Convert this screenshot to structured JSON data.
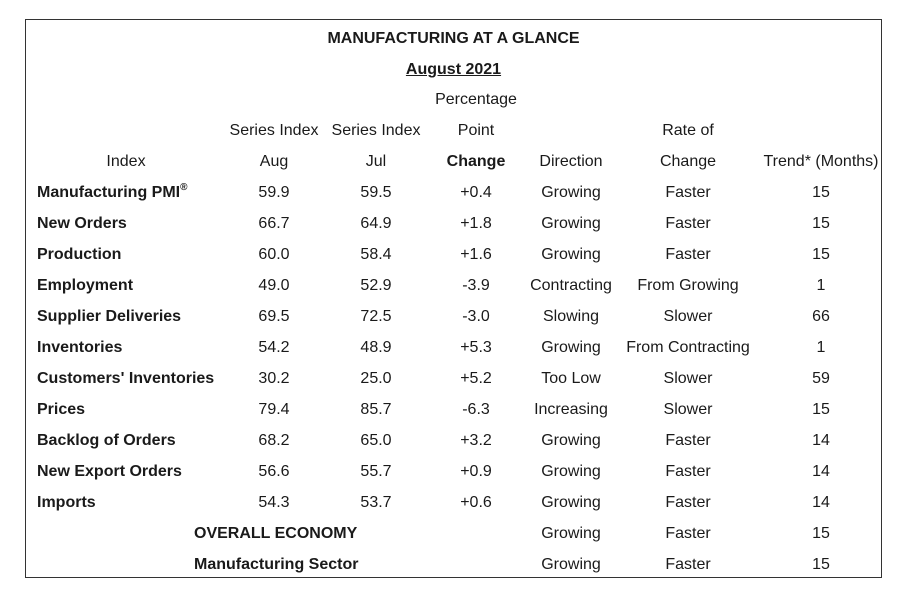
{
  "title": "MANUFACTURING AT A GLANCE",
  "subtitle": "August 2021",
  "header": {
    "row1": {
      "percentage": "Percentage"
    },
    "row2": {
      "series_aug": "Series Index",
      "series_jul": "Series Index",
      "point": "Point",
      "rate": "Rate of"
    },
    "row3": {
      "index": "Index",
      "aug": "Aug",
      "jul": "Jul",
      "change": "Change",
      "direction": "Direction",
      "rate_change": "Change",
      "trend": "Trend* (Months)"
    }
  },
  "rows": [
    {
      "index": "Manufacturing PMI",
      "sup": "®",
      "aug": "59.9",
      "jul": "59.5",
      "change": "+0.4",
      "direction": "Growing",
      "rate": "Faster",
      "trend": "15"
    },
    {
      "index": "New Orders",
      "aug": "66.7",
      "jul": "64.9",
      "change": "+1.8",
      "direction": "Growing",
      "rate": "Faster",
      "trend": "15"
    },
    {
      "index": "Production",
      "aug": "60.0",
      "jul": "58.4",
      "change": "+1.6",
      "direction": "Growing",
      "rate": "Faster",
      "trend": "15"
    },
    {
      "index": "Employment",
      "aug": "49.0",
      "jul": "52.9",
      "change": "-3.9",
      "direction": "Contracting",
      "rate": "From Growing",
      "trend": "1"
    },
    {
      "index": "Supplier Deliveries",
      "aug": "69.5",
      "jul": "72.5",
      "change": "-3.0",
      "direction": "Slowing",
      "rate": "Slower",
      "trend": "66"
    },
    {
      "index": "Inventories",
      "aug": "54.2",
      "jul": "48.9",
      "change": "+5.3",
      "direction": "Growing",
      "rate": "From Contracting",
      "trend": "1"
    },
    {
      "index": "Customers' Inventories",
      "aug": "30.2",
      "jul": "25.0",
      "change": "+5.2",
      "direction": "Too Low",
      "rate": "Slower",
      "trend": "59"
    },
    {
      "index": "Prices",
      "aug": "79.4",
      "jul": "85.7",
      "change": "-6.3",
      "direction": "Increasing",
      "rate": "Slower",
      "trend": "15"
    },
    {
      "index": "Backlog of Orders",
      "aug": "68.2",
      "jul": "65.0",
      "change": "+3.2",
      "direction": "Growing",
      "rate": "Faster",
      "trend": "14"
    },
    {
      "index": "New Export Orders",
      "aug": "56.6",
      "jul": "55.7",
      "change": "+0.9",
      "direction": "Growing",
      "rate": "Faster",
      "trend": "14"
    },
    {
      "index": "Imports",
      "aug": "54.3",
      "jul": "53.7",
      "change": "+0.6",
      "direction": "Growing",
      "rate": "Faster",
      "trend": "14"
    }
  ],
  "summary": [
    {
      "label": "OVERALL ECONOMY",
      "direction": "Growing",
      "rate": "Faster",
      "trend": "15"
    },
    {
      "label": "Manufacturing Sector",
      "direction": "Growing",
      "rate": "Faster",
      "trend": "15"
    }
  ]
}
